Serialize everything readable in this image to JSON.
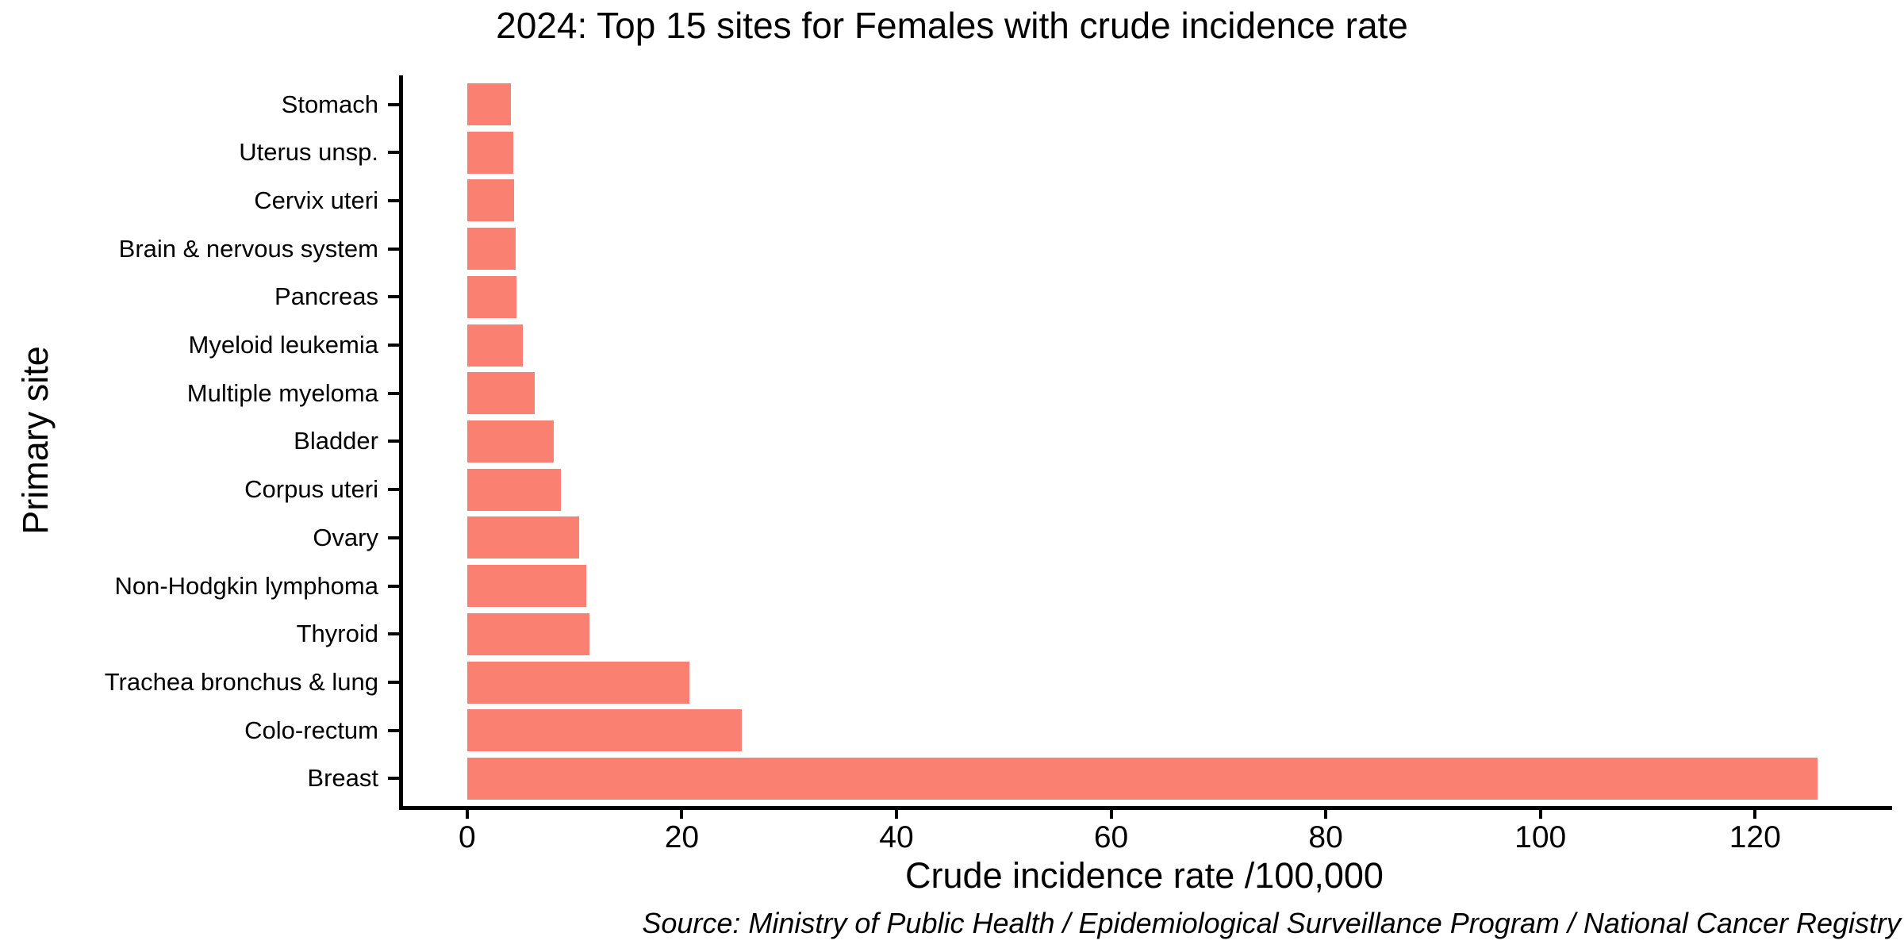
{
  "chart_data": {
    "type": "bar",
    "orientation": "horizontal",
    "title": "2024: Top 15 sites for Females with crude incidence rate",
    "xlabel": "Crude incidence rate /100,000",
    "ylabel": "Primary site",
    "categories_top_to_bottom": [
      "Stomach",
      "Uterus unsp.",
      "Cervix uteri",
      "Brain & nervous system",
      "Pancreas",
      "Myeloid leukemia",
      "Multiple myeloma",
      "Bladder",
      "Corpus uteri",
      "Ovary",
      "Non-Hodgkin lymphoma",
      "Thyroid",
      "Trachea bronchus & lung",
      "Colo-rectum",
      "Breast"
    ],
    "values": [
      4.1,
      4.3,
      4.4,
      4.5,
      4.6,
      5.2,
      6.3,
      8.1,
      8.7,
      10.4,
      11.1,
      11.4,
      20.7,
      25.6,
      125.8
    ],
    "xticks": [
      0,
      20,
      40,
      60,
      80,
      100,
      120
    ],
    "xlim": [
      -6.2,
      132.4
    ],
    "grid": false,
    "legend": null,
    "bar_color": "#FA8072",
    "axis_color": "#000000",
    "text_color": "#000000",
    "source": "Source: Ministry of Public Health / Epidemiological Surveillance Program / National Cancer Registry"
  }
}
